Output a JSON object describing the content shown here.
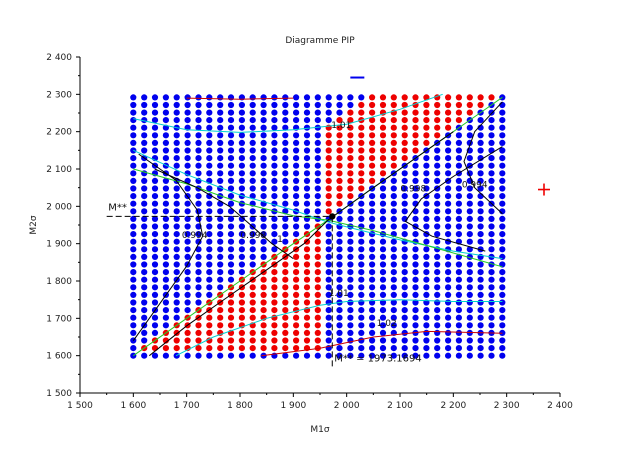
{
  "chart_data": {
    "type": "scatter",
    "title": "Diagramme PIP",
    "xlabel": "M1σ",
    "ylabel": "M2σ",
    "xlim": [
      1500,
      2400
    ],
    "ylim": [
      1500,
      2400
    ],
    "xticks": [
      "1 500",
      "1 600",
      "1 700",
      "1 800",
      "1 900",
      "2 000",
      "2 100",
      "2 200",
      "2 300",
      "2 400"
    ],
    "yticks": [
      "1 500",
      "1 600",
      "1 700",
      "1 800",
      "1 900",
      "2 000",
      "2 100",
      "2 200",
      "2 300",
      "2 400"
    ],
    "grid": false,
    "grid_points": {
      "x_start": 1600,
      "x_end": 2292,
      "x_step": 20.35,
      "y_start": 1600,
      "y_end": 2292,
      "y_step": 20.35,
      "colors": {
        "blue": "#0000ee",
        "red": "#ee0000"
      },
      "rule": "red where ratio M2/M1 lies between the two green diagonals and outside the 0.998/1.01/1.02 contour bounds"
    },
    "contours": [
      {
        "label": "1.01",
        "color": "#00d0d0",
        "points": [
          [
            1600,
            2235
          ],
          [
            1700,
            2205
          ],
          [
            1800,
            2198
          ],
          [
            1900,
            2205
          ],
          [
            2000,
            2220
          ],
          [
            2100,
            2260
          ],
          [
            2180,
            2300
          ]
        ]
      },
      {
        "label": "",
        "color": "#00d0d0",
        "points": [
          [
            1600,
            2150
          ],
          [
            1700,
            2085
          ],
          [
            1800,
            2030
          ],
          [
            1900,
            1990
          ],
          [
            1960,
            1960
          ],
          [
            2000,
            1945
          ],
          [
            2100,
            1910
          ],
          [
            2200,
            1880
          ],
          [
            2292,
            1860
          ]
        ]
      },
      {
        "label": "",
        "color": "#00d0d0",
        "points": [
          [
            1680,
            1600
          ],
          [
            1750,
            1650
          ],
          [
            1850,
            1700
          ],
          [
            1950,
            1735
          ],
          [
            2000,
            1745
          ],
          [
            2100,
            1750
          ],
          [
            2200,
            1745
          ],
          [
            2292,
            1745
          ]
        ]
      },
      {
        "label": "",
        "color": "#22cc22",
        "points": [
          [
            1600,
            2100
          ],
          [
            1700,
            2060
          ],
          [
            1800,
            2010
          ],
          [
            1900,
            1975
          ],
          [
            1965,
            1963
          ],
          [
            2050,
            1935
          ],
          [
            2150,
            1895
          ],
          [
            2250,
            1855
          ],
          [
            2292,
            1838
          ]
        ]
      },
      {
        "label": "",
        "color": "#22cc22",
        "points": [
          [
            1600,
            1600
          ],
          [
            1700,
            1700
          ],
          [
            1800,
            1800
          ],
          [
            1900,
            1900
          ],
          [
            1965,
            1963
          ],
          [
            2050,
            2050
          ],
          [
            2150,
            2150
          ],
          [
            2250,
            2250
          ],
          [
            2292,
            2292
          ]
        ]
      },
      {
        "label": "0.998",
        "color": "#000000",
        "points": [
          [
            1640,
            2100
          ],
          [
            1720,
            2050
          ],
          [
            1780,
            2000
          ],
          [
            1820,
            1950
          ],
          [
            1860,
            1900
          ],
          [
            1900,
            1860
          ]
        ]
      },
      {
        "label": "0.998",
        "color": "#000000",
        "points": [
          [
            2292,
            2160
          ],
          [
            2200,
            2080
          ],
          [
            2140,
            2020
          ],
          [
            2110,
            1960
          ],
          [
            2160,
            1920
          ],
          [
            2260,
            1880
          ]
        ]
      },
      {
        "label": "0.994",
        "color": "#000000",
        "points": [
          [
            1610,
            2140
          ],
          [
            1680,
            2070
          ],
          [
            1720,
            1990
          ],
          [
            1730,
            1920
          ],
          [
            1700,
            1840
          ],
          [
            1660,
            1760
          ],
          [
            1620,
            1680
          ],
          [
            1600,
            1640
          ]
        ]
      },
      {
        "label": "0.994",
        "color": "#000000",
        "points": [
          [
            2292,
            2280
          ],
          [
            2240,
            2200
          ],
          [
            2220,
            2120
          ],
          [
            2240,
            2050
          ],
          [
            2292,
            1980
          ]
        ]
      },
      {
        "label": "1",
        "color": "#000000",
        "points": [
          [
            1630,
            1600
          ],
          [
            1700,
            1680
          ],
          [
            1780,
            1760
          ],
          [
            1850,
            1830
          ],
          [
            1920,
            1900
          ],
          [
            1965,
            1963
          ],
          [
            2040,
            2040
          ],
          [
            2120,
            2120
          ],
          [
            2200,
            2200
          ]
        ]
      },
      {
        "label": "1.01",
        "color": "#000000",
        "points": [
          [
            1990,
            1760
          ]
        ]
      },
      {
        "label": "1.02",
        "color": "#cc0000",
        "points": [
          [
            1840,
            1600
          ],
          [
            1950,
            1620
          ],
          [
            2050,
            1650
          ],
          [
            2150,
            1665
          ],
          [
            2292,
            1660
          ]
        ]
      },
      {
        "label": "",
        "color": "#cc0000",
        "points": [
          [
            1700,
            2290
          ],
          [
            1800,
            2287
          ],
          [
            1900,
            2290
          ]
        ]
      }
    ],
    "annotations": {
      "m_star_label": "M**",
      "m_star_value": "M** = 1973.1694",
      "point": [
        1973,
        1973
      ],
      "plus_point": [
        2370,
        2045
      ],
      "minus_point": [
        2020,
        2345
      ]
    },
    "contour_labels": [
      {
        "text": "1.01",
        "x": 1990,
        "y": 2210
      },
      {
        "text": "0.998",
        "x": 2125,
        "y": 2040
      },
      {
        "text": "0.994",
        "x": 2240,
        "y": 2050
      },
      {
        "text": "0.994",
        "x": 1715,
        "y": 1915
      },
      {
        "text": "0.998",
        "x": 1825,
        "y": 1915
      },
      {
        "text": "1",
        "x": 1875,
        "y": 1905
      },
      {
        "text": "1.01",
        "x": 1985,
        "y": 1760
      },
      {
        "text": "1.02",
        "x": 2075,
        "y": 1680
      }
    ]
  }
}
